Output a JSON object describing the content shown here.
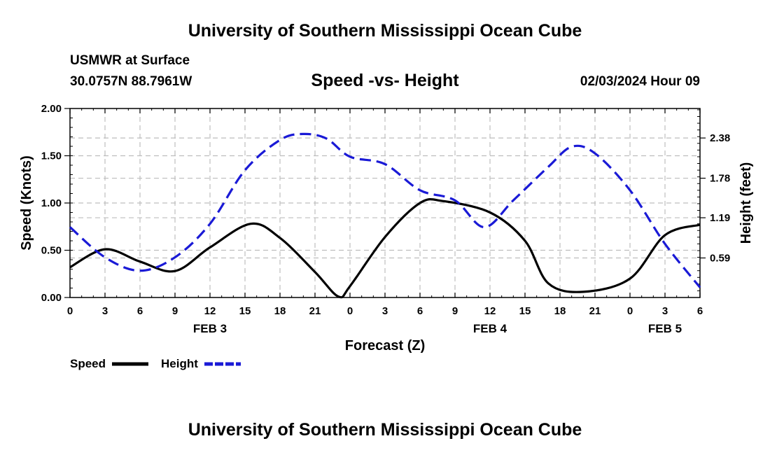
{
  "page": {
    "title_top": "University of Southern Mississippi Ocean Cube",
    "title_bottom": "University of Southern Mississippi Ocean Cube",
    "station": "USMWR at Surface",
    "coords": "30.0757N  88.7961W",
    "date_hour": "02/03/2024 Hour 09"
  },
  "colors": {
    "speed": "#000000",
    "height": "#1a1ad6",
    "grid": "#bdbdbd"
  },
  "chart_data": {
    "type": "line",
    "title": "Speed -vs- Height",
    "xlabel": "Forecast (Z)",
    "ylabel_left": "Speed (Knots)",
    "ylabel_right": "Height (feet)",
    "x_hours_range": [
      0,
      54
    ],
    "x_tick_labels": [
      "0",
      "3",
      "6",
      "9",
      "12",
      "15",
      "18",
      "21",
      "0",
      "3",
      "6",
      "9",
      "12",
      "15",
      "18",
      "21",
      "0",
      "3",
      "6"
    ],
    "x_day_labels": [
      {
        "hour": 12,
        "label": "FEB 3"
      },
      {
        "hour": 36,
        "label": "FEB 4"
      },
      {
        "hour": 51,
        "label": "FEB 5"
      }
    ],
    "ylim_left": [
      0,
      2.0
    ],
    "y_left_ticks": [
      "0.00",
      "0.50",
      "1.00",
      "1.50",
      "2.00"
    ],
    "ylim_right": [
      0,
      2.82
    ],
    "y_right_ticks": [
      {
        "value": 0.59,
        "label": "0.59"
      },
      {
        "value": 1.19,
        "label": "1.19"
      },
      {
        "value": 1.78,
        "label": "1.78"
      },
      {
        "value": 2.38,
        "label": "2.38"
      }
    ],
    "series": [
      {
        "name": "Speed",
        "axis": "left",
        "style": "solid",
        "x": [
          0,
          3,
          6,
          9,
          12,
          15.5,
          18,
          21,
          23,
          24,
          27,
          30,
          32,
          36,
          39,
          41,
          44,
          48,
          51,
          54
        ],
        "values": [
          0.32,
          0.51,
          0.38,
          0.28,
          0.53,
          0.78,
          0.63,
          0.27,
          0.01,
          0.12,
          0.64,
          1.0,
          1.02,
          0.9,
          0.6,
          0.15,
          0.06,
          0.2,
          0.66,
          0.77
        ]
      },
      {
        "name": "Height",
        "axis": "right",
        "style": "dashed",
        "x": [
          0,
          3,
          6,
          9,
          12,
          15,
          18,
          20,
          22,
          24,
          27,
          30,
          33,
          35.5,
          38,
          41,
          43,
          45,
          48,
          51,
          54
        ],
        "values": [
          1.05,
          0.6,
          0.4,
          0.6,
          1.1,
          1.9,
          2.35,
          2.44,
          2.37,
          2.1,
          1.99,
          1.6,
          1.45,
          1.05,
          1.45,
          1.95,
          2.25,
          2.15,
          1.6,
          0.8,
          0.15
        ]
      }
    ],
    "legend": [
      {
        "label": "Speed"
      },
      {
        "label": "Height"
      }
    ]
  }
}
